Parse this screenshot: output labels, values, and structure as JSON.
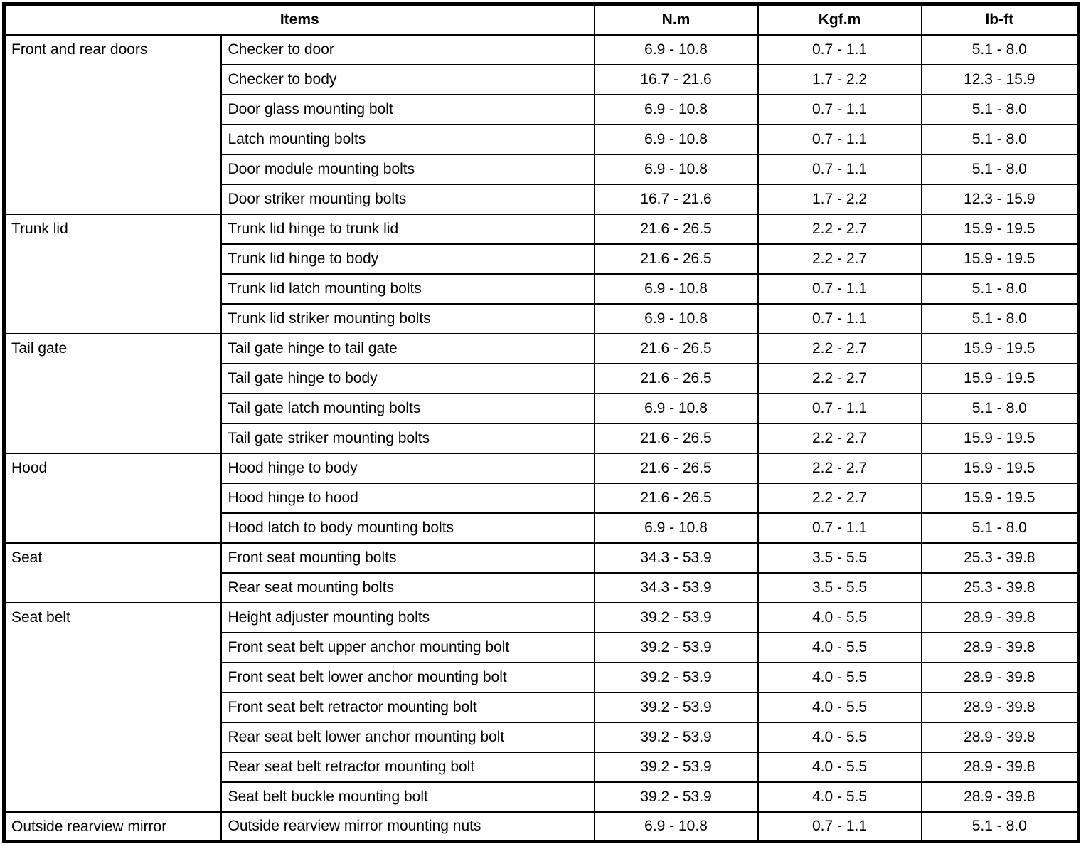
{
  "table": {
    "headers": {
      "items": "Items",
      "nm": "N.m",
      "kgfm": "Kgf.m",
      "lbft": "lb-ft"
    },
    "sections": [
      {
        "category": "Front and rear doors",
        "rows": [
          {
            "item": "Checker to door",
            "nm": "6.9 - 10.8",
            "kgfm": "0.7 - 1.1",
            "lbft": "5.1 - 8.0"
          },
          {
            "item": "Checker to body",
            "nm": "16.7 - 21.6",
            "kgfm": "1.7 - 2.2",
            "lbft": "12.3 - 15.9"
          },
          {
            "item": "Door glass mounting bolt",
            "nm": "6.9 - 10.8",
            "kgfm": "0.7 - 1.1",
            "lbft": "5.1 - 8.0"
          },
          {
            "item": "Latch mounting bolts",
            "nm": "6.9 - 10.8",
            "kgfm": "0.7 - 1.1",
            "lbft": "5.1 - 8.0"
          },
          {
            "item": "Door module mounting bolts",
            "nm": "6.9 - 10.8",
            "kgfm": "0.7 - 1.1",
            "lbft": "5.1 - 8.0"
          },
          {
            "item": "Door striker mounting bolts",
            "nm": "16.7 - 21.6",
            "kgfm": "1.7 - 2.2",
            "lbft": "12.3 - 15.9"
          }
        ]
      },
      {
        "category": "Trunk lid",
        "rows": [
          {
            "item": "Trunk lid hinge to trunk lid",
            "nm": "21.6 - 26.5",
            "kgfm": "2.2 - 2.7",
            "lbft": "15.9 - 19.5"
          },
          {
            "item": "Trunk lid hinge to body",
            "nm": "21.6 - 26.5",
            "kgfm": "2.2 - 2.7",
            "lbft": "15.9 - 19.5"
          },
          {
            "item": "Trunk lid latch mounting bolts",
            "nm": "6.9 - 10.8",
            "kgfm": "0.7 - 1.1",
            "lbft": "5.1 - 8.0"
          },
          {
            "item": "Trunk lid striker mounting bolts",
            "nm": "6.9 - 10.8",
            "kgfm": "0.7 - 1.1",
            "lbft": "5.1 - 8.0"
          }
        ]
      },
      {
        "category": "Tail gate",
        "rows": [
          {
            "item": "Tail gate hinge to tail gate",
            "nm": "21.6 - 26.5",
            "kgfm": "2.2 - 2.7",
            "lbft": "15.9 - 19.5"
          },
          {
            "item": "Tail gate hinge to body",
            "nm": "21.6 - 26.5",
            "kgfm": "2.2 - 2.7",
            "lbft": "15.9 - 19.5"
          },
          {
            "item": "Tail gate latch mounting bolts",
            "nm": "6.9 - 10.8",
            "kgfm": "0.7 - 1.1",
            "lbft": "5.1 - 8.0"
          },
          {
            "item": "Tail gate striker mounting bolts",
            "nm": "21.6 - 26.5",
            "kgfm": "2.2 - 2.7",
            "lbft": "15.9 - 19.5"
          }
        ]
      },
      {
        "category": "Hood",
        "rows": [
          {
            "item": "Hood hinge to body",
            "nm": "21.6 - 26.5",
            "kgfm": "2.2 - 2.7",
            "lbft": "15.9 - 19.5"
          },
          {
            "item": "Hood hinge to hood",
            "nm": "21.6 - 26.5",
            "kgfm": "2.2 - 2.7",
            "lbft": "15.9 - 19.5"
          },
          {
            "item": "Hood latch to body mounting bolts",
            "nm": "6.9 - 10.8",
            "kgfm": "0.7 - 1.1",
            "lbft": "5.1 - 8.0"
          }
        ]
      },
      {
        "category": "Seat",
        "rows": [
          {
            "item": "Front seat mounting bolts",
            "nm": "34.3 - 53.9",
            "kgfm": "3.5 - 5.5",
            "lbft": "25.3 - 39.8"
          },
          {
            "item": "Rear seat mounting bolts",
            "nm": "34.3 - 53.9",
            "kgfm": "3.5 - 5.5",
            "lbft": "25.3 - 39.8"
          }
        ]
      },
      {
        "category": "Seat belt",
        "rows": [
          {
            "item": "Height adjuster mounting bolts",
            "nm": "39.2 - 53.9",
            "kgfm": "4.0 - 5.5",
            "lbft": "28.9 - 39.8"
          },
          {
            "item": "Front seat belt upper anchor mounting bolt",
            "nm": "39.2 - 53.9",
            "kgfm": "4.0 - 5.5",
            "lbft": "28.9 - 39.8"
          },
          {
            "item": "Front seat belt lower anchor mounting bolt",
            "nm": "39.2 - 53.9",
            "kgfm": "4.0 - 5.5",
            "lbft": "28.9 - 39.8"
          },
          {
            "item": "Front seat belt retractor mounting bolt",
            "nm": "39.2 - 53.9",
            "kgfm": "4.0 - 5.5",
            "lbft": "28.9 - 39.8"
          },
          {
            "item": "Rear seat belt lower anchor mounting bolt",
            "nm": "39.2 - 53.9",
            "kgfm": "4.0 - 5.5",
            "lbft": "28.9 - 39.8"
          },
          {
            "item": "Rear seat belt retractor mounting bolt",
            "nm": "39.2 - 53.9",
            "kgfm": "4.0 - 5.5",
            "lbft": "28.9 - 39.8"
          },
          {
            "item": "Seat belt buckle mounting bolt",
            "nm": "39.2 - 53.9",
            "kgfm": "4.0 - 5.5",
            "lbft": "28.9 - 39.8"
          }
        ]
      },
      {
        "category": "Outside rearview mirror",
        "rows": [
          {
            "item": "Outside rearview mirror mounting nuts",
            "nm": "6.9 - 10.8",
            "kgfm": "0.7 - 1.1",
            "lbft": "5.1 - 8.0"
          }
        ]
      }
    ],
    "colors": {
      "border": "#000000",
      "text": "#000000",
      "background": "#ffffff"
    }
  }
}
